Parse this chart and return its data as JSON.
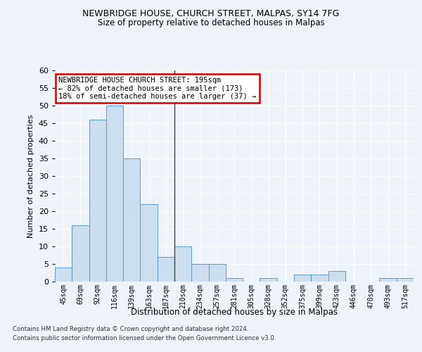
{
  "title1": "NEWBRIDGE HOUSE, CHURCH STREET, MALPAS, SY14 7FG",
  "title2": "Size of property relative to detached houses in Malpas",
  "xlabel": "Distribution of detached houses by size in Malpas",
  "ylabel": "Number of detached properties",
  "categories": [
    "45sqm",
    "69sqm",
    "92sqm",
    "116sqm",
    "139sqm",
    "163sqm",
    "187sqm",
    "210sqm",
    "234sqm",
    "257sqm",
    "281sqm",
    "305sqm",
    "328sqm",
    "352sqm",
    "375sqm",
    "399sqm",
    "423sqm",
    "446sqm",
    "470sqm",
    "493sqm",
    "517sqm"
  ],
  "values": [
    4,
    16,
    46,
    50,
    35,
    22,
    7,
    10,
    5,
    5,
    1,
    0,
    1,
    0,
    2,
    2,
    3,
    0,
    0,
    1,
    1
  ],
  "bar_color": "#ccdff0",
  "bar_edge_color": "#5b9bd5",
  "annotation_line1": "NEWBRIDGE HOUSE CHURCH STREET: 195sqm",
  "annotation_line2": "← 82% of detached houses are smaller (173)",
  "annotation_line3": "18% of semi-detached houses are larger (37) →",
  "annotation_box_color": "#ffffff",
  "annotation_box_edge": "#cc0000",
  "vline_x_index": 6.5,
  "vline_color": "#444444",
  "background_color": "#eef2f9",
  "grid_color": "#ffffff",
  "ylim": [
    0,
    60
  ],
  "yticks": [
    0,
    5,
    10,
    15,
    20,
    25,
    30,
    35,
    40,
    45,
    50,
    55,
    60
  ],
  "footnote1": "Contains HM Land Registry data © Crown copyright and database right 2024.",
  "footnote2": "Contains public sector information licensed under the Open Government Licence v3.0."
}
